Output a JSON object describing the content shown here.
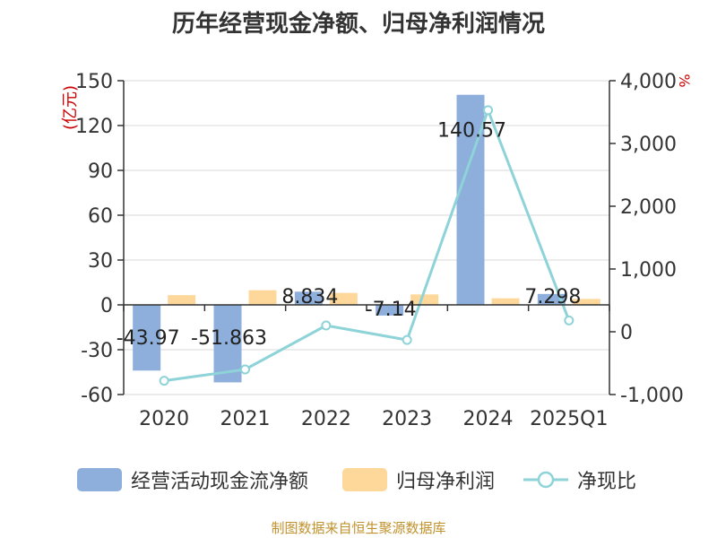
{
  "title": "历年经营现金净额、归母净利润情况",
  "source_note": "制图数据来自恒生聚源数据库",
  "colors": {
    "ocf": "#8eaedb",
    "profit": "#fdd89a",
    "ratio": "#8dd3d8",
    "axis_unit": "#cc0000"
  },
  "chart_data": {
    "type": "bar",
    "categories": [
      "2020",
      "2021",
      "2022",
      "2023",
      "2024",
      "2025Q1"
    ],
    "series": [
      {
        "name": "经营活动现金流净额",
        "type": "bar",
        "axis": "left",
        "values": [
          -43.97,
          -51.863,
          8.834,
          -7.14,
          140.57,
          7.298
        ],
        "labels": [
          "-43.97",
          "-51.863",
          "8.834",
          "-7.14",
          "140.57",
          "7.298"
        ]
      },
      {
        "name": "归母净利润",
        "type": "bar",
        "axis": "left",
        "values": [
          6.5,
          9.8,
          8.0,
          7.0,
          4.4,
          4.0
        ]
      },
      {
        "name": "净现比",
        "type": "line",
        "axis": "right",
        "values": [
          -780,
          -600,
          100,
          -130,
          3530,
          180
        ]
      }
    ],
    "y_left": {
      "label": "(亿元)",
      "ylim": [
        -60,
        150
      ],
      "ticks": [
        150,
        120,
        90,
        60,
        30,
        0,
        -30,
        -60
      ],
      "tick_labels": [
        "150",
        "120",
        "90",
        "60",
        "30",
        "0",
        "-30",
        "-60"
      ]
    },
    "y_right": {
      "label": "%",
      "ylim": [
        -1000,
        4000
      ],
      "ticks": [
        4000,
        3000,
        2000,
        1000,
        0,
        -1000
      ],
      "tick_labels": [
        "4,000",
        "3,000",
        "2,000",
        "1,000",
        "0",
        "-1,000"
      ]
    },
    "grid": true,
    "legend_position": "bottom"
  }
}
